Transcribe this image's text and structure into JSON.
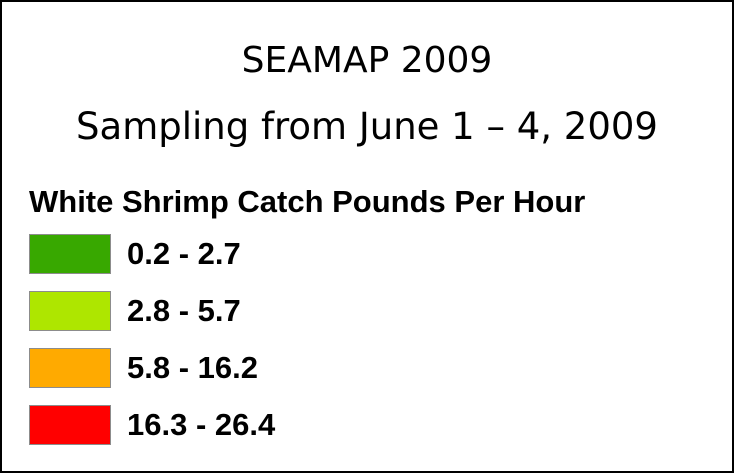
{
  "title": "SEAMAP 2009",
  "subtitle": "Sampling from June 1 – 4, 2009",
  "legend": {
    "title": "White Shrimp Catch Pounds Per Hour",
    "items": [
      {
        "label": "0.2 - 2.7",
        "color": "#38a800"
      },
      {
        "label": "2.8 - 5.7",
        "color": "#aee600"
      },
      {
        "label": "5.8 - 16.2",
        "color": "#ffaa00"
      },
      {
        "label": "16.3 - 26.4",
        "color": "#ff0000"
      }
    ]
  }
}
